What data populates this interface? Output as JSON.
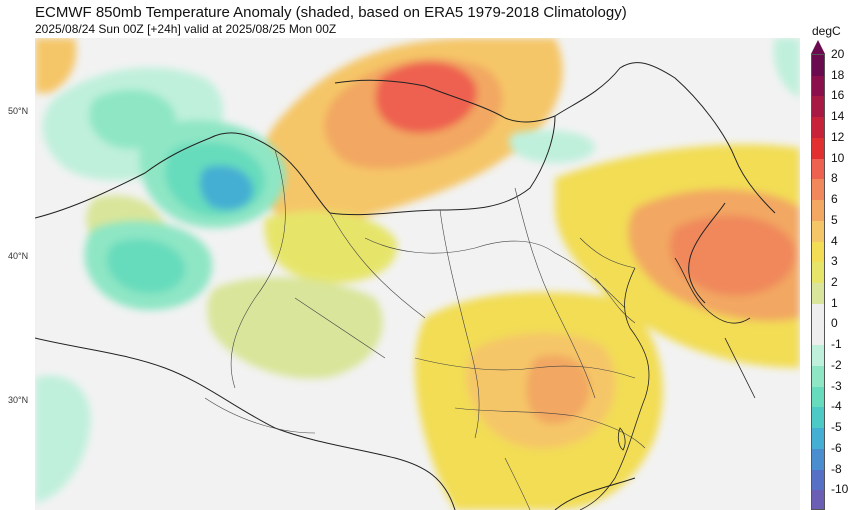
{
  "header": {
    "title": "ECMWF 850mb Temperature Anomaly (shaded, based on ERA5 1979-2018 Climatology)",
    "subtitle": "2025/08/24 Sun 00Z [+24h] valid at 2025/08/25 Mon 00Z"
  },
  "latitude_labels": [
    "50°N",
    "40°N",
    "30°N"
  ],
  "colorbar": {
    "unit": "degC",
    "ticks": [
      "20",
      "18",
      "16",
      "14",
      "12",
      "10",
      "8",
      "6",
      "5",
      "4",
      "3",
      "2",
      "1",
      "0",
      "-1",
      "-2",
      "-3",
      "-4",
      "-5",
      "-6",
      "-8",
      "-10"
    ],
    "colors": [
      "#6a0a4f",
      "#8a0f4a",
      "#a81a43",
      "#c8223a",
      "#e23030",
      "#ee6050",
      "#f0885c",
      "#f2a762",
      "#f5c668",
      "#f2dd55",
      "#e6e56a",
      "#d9e59a",
      "#eeeeee",
      "#eeeeee",
      "#bff0dc",
      "#8ee6c5",
      "#66dcbc",
      "#4ccbc6",
      "#44aed3",
      "#4a8ed0",
      "#5570c4",
      "#6a5fb5"
    ]
  }
}
